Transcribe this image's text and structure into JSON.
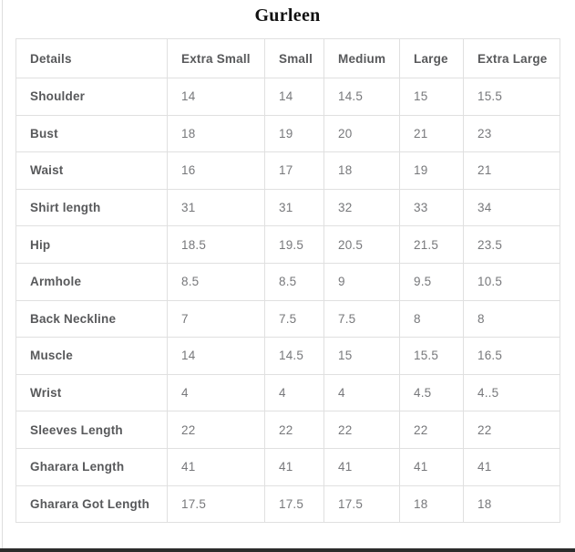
{
  "page": {
    "title": "Gurleen"
  },
  "chart_data": {
    "type": "table",
    "title": "Gurleen",
    "columns": [
      "Details",
      "Extra Small",
      "Small",
      "Medium",
      "Large",
      "Extra Large"
    ],
    "rows": [
      [
        "Shoulder",
        "14",
        "14",
        "14.5",
        "15",
        "15.5"
      ],
      [
        "Bust",
        "18",
        "19",
        "20",
        "21",
        "23"
      ],
      [
        "Waist",
        "16",
        "17",
        "18",
        "19",
        "21"
      ],
      [
        "Shirt length",
        "31",
        "31",
        "32",
        "33",
        "34"
      ],
      [
        "Hip",
        "18.5",
        "19.5",
        "20.5",
        "21.5",
        "23.5"
      ],
      [
        "Armhole",
        "8.5",
        "8.5",
        "9",
        "9.5",
        "10.5"
      ],
      [
        "Back Neckline",
        "7",
        "7.5",
        "7.5",
        "8",
        "8"
      ],
      [
        "Muscle",
        "14",
        "14.5",
        "15",
        "15.5",
        "16.5"
      ],
      [
        "Wrist",
        "4",
        "4",
        "4",
        "4.5",
        "4..5"
      ],
      [
        "Sleeves Length",
        "22",
        "22",
        "22",
        "22",
        "22"
      ],
      [
        "Gharara Length",
        "41",
        "41",
        "41",
        "41",
        "41"
      ],
      [
        "Gharara Got Length",
        "17.5",
        "17.5",
        "17.5",
        "18",
        "18"
      ]
    ]
  },
  "colors": {
    "background": "#ffffff",
    "title_text": "#121212",
    "header_text": "#58595b",
    "row_label_text": "#58595b",
    "value_text": "#77787b",
    "table_border": "#e0e0e0",
    "page_edge_line": "#dedede",
    "footer_bar": "#2b2b2b"
  }
}
